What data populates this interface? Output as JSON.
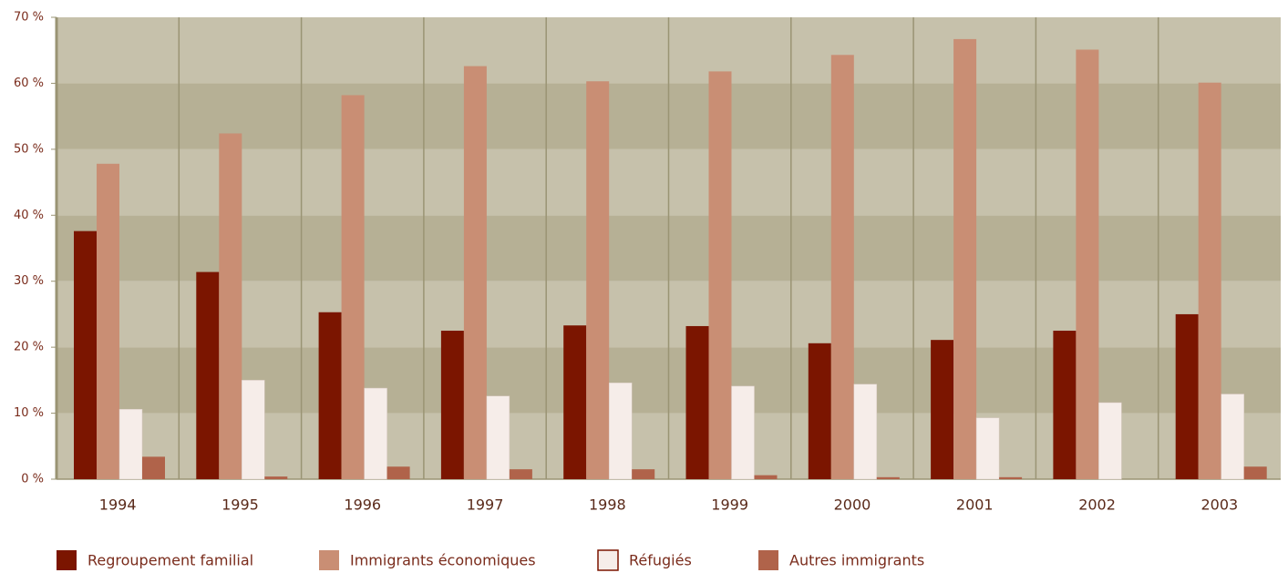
{
  "chart_data": {
    "type": "bar",
    "categories": [
      "1994",
      "1995",
      "1996",
      "1997",
      "1998",
      "1999",
      "2000",
      "2001",
      "2002",
      "2003"
    ],
    "series": [
      {
        "name": "Regroupement familial",
        "color": "#7b1500",
        "values": [
          37.6,
          31.4,
          25.3,
          22.5,
          23.3,
          23.2,
          20.6,
          21.1,
          22.5,
          25.0
        ]
      },
      {
        "name": "Immigrants économiques",
        "color": "#c98e74",
        "values": [
          47.8,
          52.4,
          58.2,
          62.6,
          60.3,
          61.8,
          64.3,
          66.7,
          65.1,
          60.1
        ]
      },
      {
        "name": "Réfugiés",
        "color": "#f6ede9",
        "values": [
          10.6,
          15.0,
          13.8,
          12.6,
          14.6,
          14.1,
          14.4,
          9.3,
          11.6,
          12.9
        ]
      },
      {
        "name": "Autres immigrants",
        "color": "#b0634a",
        "values": [
          3.4,
          0.4,
          1.9,
          1.5,
          1.5,
          0.6,
          0.3,
          0.3,
          0,
          1.9
        ]
      }
    ],
    "ylim": [
      0,
      70
    ],
    "yticks": [
      {
        "value": 0,
        "label": "0 %"
      },
      {
        "value": 10,
        "label": "10 %"
      },
      {
        "value": 20,
        "label": "20 %"
      },
      {
        "value": 30,
        "label": "30 %"
      },
      {
        "value": 40,
        "label": "40 %"
      },
      {
        "value": 50,
        "label": "50 %"
      },
      {
        "value": 60,
        "label": "60 %"
      },
      {
        "value": 70,
        "label": "70 %"
      }
    ],
    "grid": true
  }
}
